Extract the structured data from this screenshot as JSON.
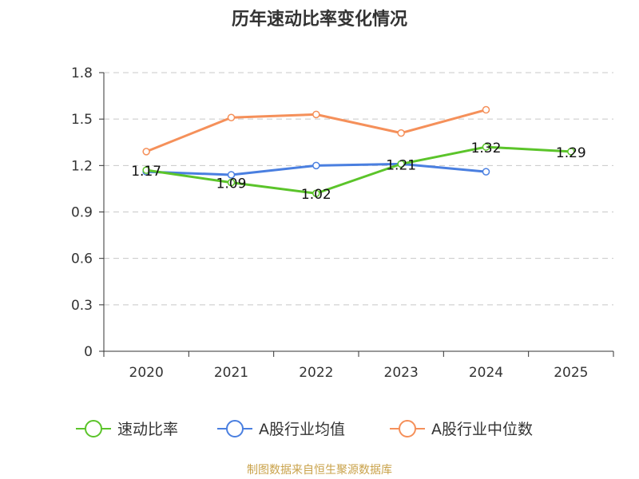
{
  "chart_data": {
    "type": "line",
    "title": "历年速动比率变化情况",
    "xlabel": "",
    "ylabel": "",
    "categories": [
      "2020",
      "2021",
      "2022",
      "2023",
      "2024",
      "2025"
    ],
    "ylim": [
      0,
      1.8
    ],
    "yticks": [
      "0",
      "0.3",
      "0.6",
      "0.9",
      "1.2",
      "1.5",
      "1.8"
    ],
    "grid": true,
    "legend_position": "bottom",
    "series": [
      {
        "name": "速动比率",
        "color": "#5bc42a",
        "values": [
          1.17,
          1.09,
          1.02,
          1.21,
          1.32,
          1.29
        ],
        "labels": [
          "1.17",
          "1.09",
          "1.02",
          "1.21",
          "1.32",
          "1.29"
        ]
      },
      {
        "name": "A股行业均值",
        "color": "#4a7fe0",
        "values": [
          1.16,
          1.14,
          1.2,
          1.21,
          1.16,
          null
        ]
      },
      {
        "name": "A股行业中位数",
        "color": "#f5905a",
        "values": [
          1.29,
          1.51,
          1.53,
          1.41,
          1.56,
          null
        ]
      }
    ]
  },
  "source_note": "制图数据来自恒生聚源数据库"
}
